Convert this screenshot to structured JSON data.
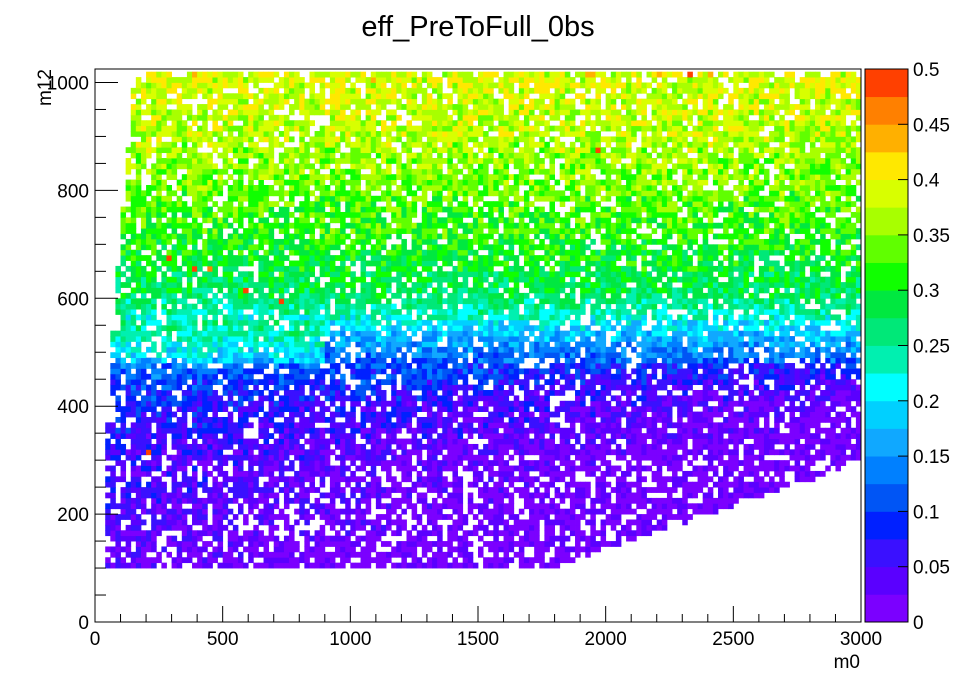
{
  "chart_data": {
    "type": "heatmap",
    "title": "eff_PreToFull_0bs",
    "xlabel": "m0",
    "ylabel": "m12",
    "xlim": [
      0,
      3000
    ],
    "ylim": [
      0,
      1025
    ],
    "x_ticks": [
      "0",
      "500",
      "1000",
      "1500",
      "2000",
      "2500",
      "3000"
    ],
    "y_ticks": [
      "0",
      "200",
      "400",
      "600",
      "800",
      "1000"
    ],
    "zlim": [
      0,
      0.5
    ],
    "z_ticks": [
      "0",
      "0.05",
      "0.1",
      "0.15",
      "0.2",
      "0.25",
      "0.3",
      "0.35",
      "0.4",
      "0.45",
      "0.5"
    ],
    "z_levels": 20,
    "palette": [
      "#7b00ff",
      "#5a00ff",
      "#3a10ff",
      "#0020ff",
      "#0055f5",
      "#0080ff",
      "#10a8ff",
      "#00d0ff",
      "#00ffff",
      "#00f0b0",
      "#00e878",
      "#00e840",
      "#10ff00",
      "#60ff00",
      "#a8ff00",
      "#d8ff00",
      "#ffe800",
      "#ffb000",
      "#ff8000",
      "#ff4000",
      "#ff0000"
    ],
    "grid": false,
    "cell_size": [
      20,
      10
    ],
    "efficiency_profile": [
      {
        "m12": 100,
        "z": 0.02
      },
      {
        "m12": 200,
        "z": 0.04
      },
      {
        "m12": 300,
        "z": 0.05
      },
      {
        "m12": 400,
        "z": 0.08
      },
      {
        "m12": 480,
        "z": 0.14
      },
      {
        "m12": 540,
        "z": 0.21
      },
      {
        "m12": 600,
        "z": 0.27
      },
      {
        "m12": 700,
        "z": 0.31
      },
      {
        "m12": 800,
        "z": 0.34
      },
      {
        "m12": 900,
        "z": 0.37
      },
      {
        "m12": 1020,
        "z": 0.39
      }
    ],
    "hot_cells": [
      {
        "m0": 270,
        "m12": 670,
        "z": 0.48
      },
      {
        "m0": 370,
        "m12": 650,
        "z": 0.48
      },
      {
        "m0": 440,
        "m12": 650,
        "z": 0.47
      },
      {
        "m0": 570,
        "m12": 610,
        "z": 0.48
      },
      {
        "m0": 710,
        "m12": 590,
        "z": 0.48
      },
      {
        "m0": 200,
        "m12": 310,
        "z": 0.48
      },
      {
        "m0": 1960,
        "m12": 870,
        "z": 0.48
      },
      {
        "m0": 2320,
        "m12": 1010,
        "z": 0.48
      }
    ]
  }
}
